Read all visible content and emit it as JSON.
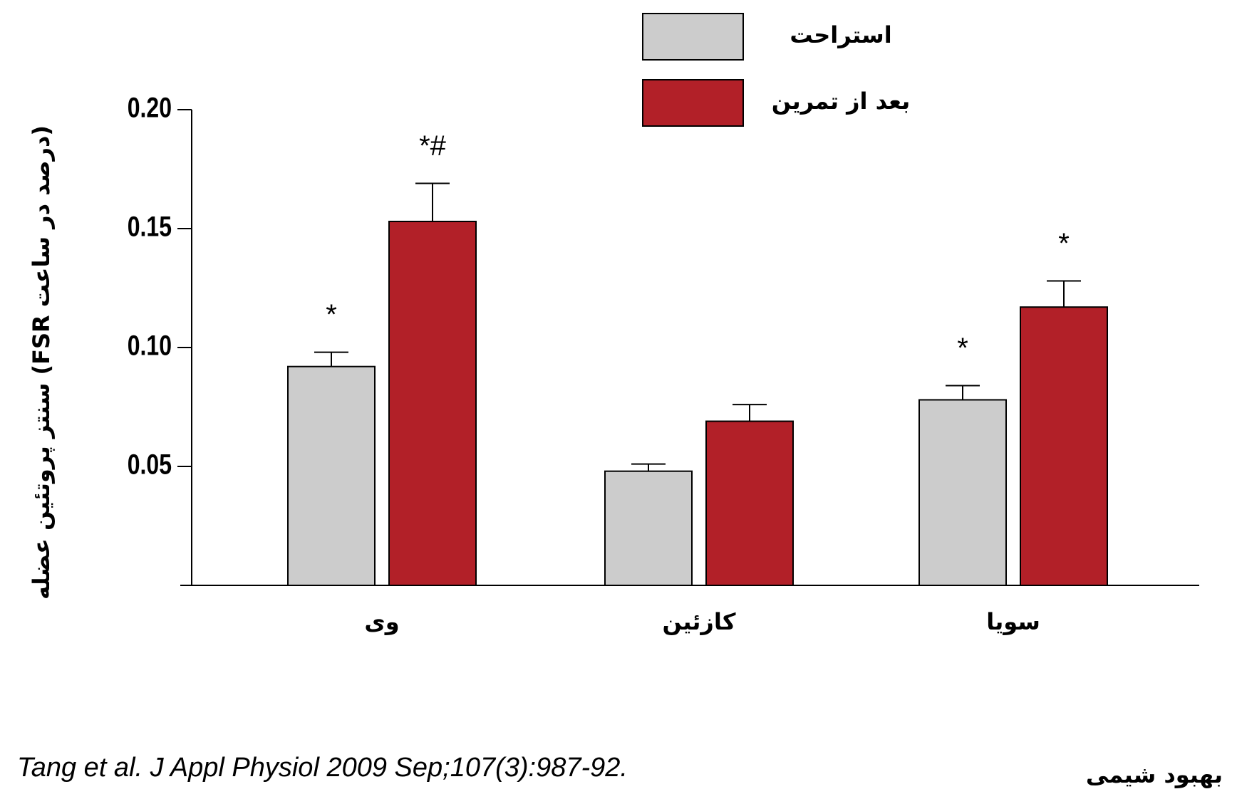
{
  "chart_data": {
    "type": "bar",
    "y_label": "سنتز پروتئین عضله (FSR درصد در ساعت)",
    "categories": [
      "وی",
      "کازئین",
      "سویا"
    ],
    "series": [
      {
        "name": "استراحت",
        "color": "#cccccc",
        "values": [
          0.092,
          0.048,
          0.078
        ],
        "errors": [
          0.006,
          0.003,
          0.006
        ],
        "labels": [
          "*",
          null,
          "*"
        ]
      },
      {
        "name": "بعد از تمرین",
        "color": "#b22028",
        "values": [
          0.153,
          0.069,
          0.117
        ],
        "errors": [
          0.016,
          0.007,
          0.011
        ],
        "labels": [
          "*#",
          null,
          "*"
        ]
      }
    ],
    "ylim": [
      0,
      0.2
    ],
    "yticks": [
      0.05,
      {
        "value": 0.1,
        "label": "0.10"
      },
      0.15,
      {
        "value": 0.2,
        "label": "0.20"
      }
    ],
    "source": "Tang et al. J Appl Physiol 2009 Sep;107(3):987-92.",
    "watermark": "بهبود شیمی"
  }
}
